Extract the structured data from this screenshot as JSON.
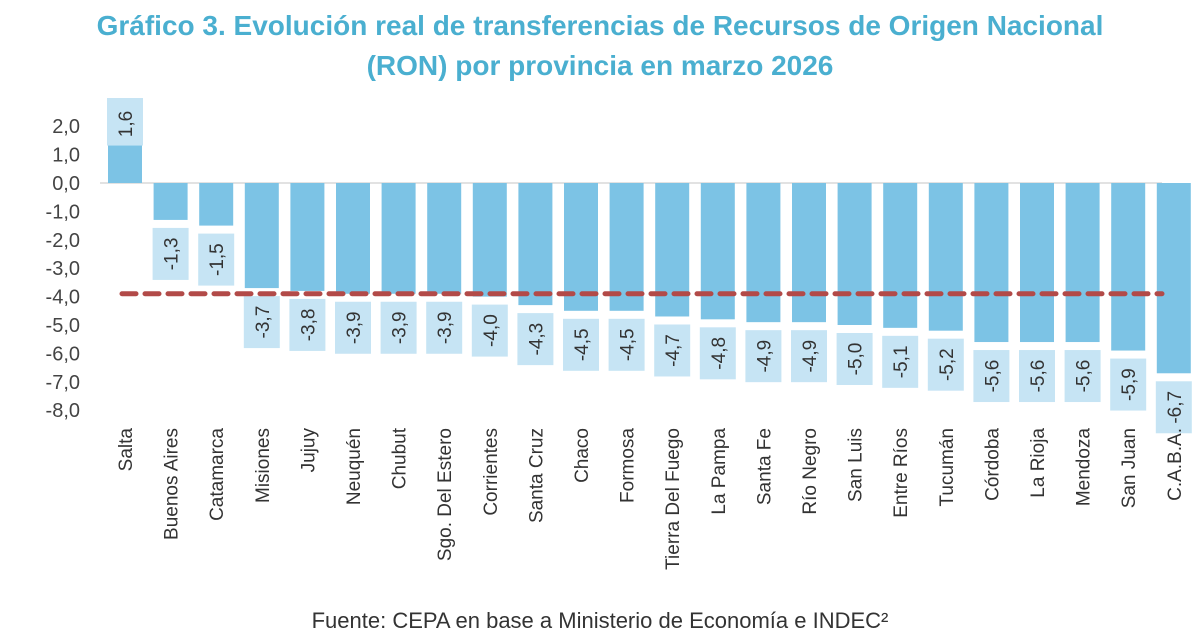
{
  "chart_data": {
    "type": "bar",
    "title_line1": "Gráfico 3. Evolución real de transferencias de Recursos de Origen Nacional",
    "title_line2": "(RON) por provincia en marzo 2026",
    "categories": [
      "Salta",
      "Buenos Aires",
      "Catamarca",
      "Misiones",
      "Jujuy",
      "Neuquén",
      "Chubut",
      "Sgo. Del Estero",
      "Corrientes",
      "Santa Cruz",
      "Chaco",
      "Formosa",
      "Tierra Del Fuego",
      "La Pampa",
      "Santa Fe",
      "Río Negro",
      "San Luis",
      "Entre Ríos",
      "Tucumán",
      "Córdoba",
      "La Rioja",
      "Mendoza",
      "San Juan",
      "C.A.B.A."
    ],
    "values": [
      1.6,
      -1.3,
      -1.5,
      -3.7,
      -3.8,
      -3.9,
      -3.9,
      -3.9,
      -4.0,
      -4.3,
      -4.5,
      -4.5,
      -4.7,
      -4.8,
      -4.9,
      -4.9,
      -5.0,
      -5.1,
      -5.2,
      -5.6,
      -5.6,
      -5.6,
      -5.9,
      -6.7
    ],
    "data_labels": [
      "1,6",
      "-1,3",
      "-1,5",
      "-3,7",
      "-3,8",
      "-3,9",
      "-3,9",
      "-3,9",
      "-4,0",
      "-4,3",
      "-4,5",
      "-4,5",
      "-4,7",
      "-4,8",
      "-4,9",
      "-4,9",
      "-5,0",
      "-5,1",
      "-5,2",
      "-5,6",
      "-5,6",
      "-5,6",
      "-5,9",
      "-6,7"
    ],
    "yticks": [
      "2,0",
      "1,0",
      "0,0",
      "-1,0",
      "-2,0",
      "-3,0",
      "-4,0",
      "-5,0",
      "-6,0",
      "-7,0",
      "-8,0"
    ],
    "ylim": [
      -8,
      2
    ],
    "reference_line": -3.9,
    "grid": false,
    "xlabel": "",
    "ylabel": "",
    "colors": {
      "bar": "#7cc3e5",
      "label_box": "#c6e4f4",
      "reference_line": "#b24a48",
      "title": "#4aafd0"
    }
  },
  "source": "Fuente: CEPA en base a Ministerio de Economía e INDEC²"
}
